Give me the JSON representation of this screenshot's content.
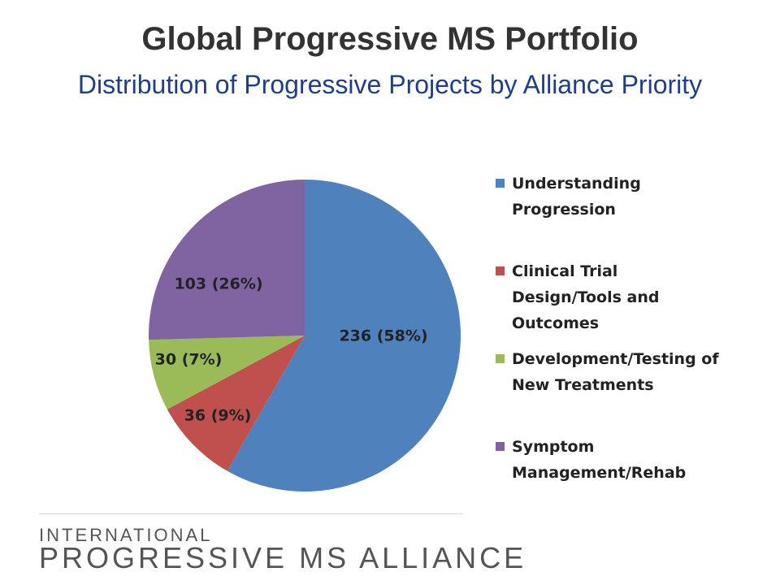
{
  "chart_data": {
    "type": "pie",
    "title": "Global Progressive MS Portfolio",
    "subtitle": "Distribution of Progressive Projects by Alliance Priority",
    "legend_position": "right",
    "slices": [
      {
        "name": "Understanding Progression",
        "value": 236,
        "percent": 58,
        "label": "236 (58%)",
        "color": "#4f81bd"
      },
      {
        "name": "Clinical Trial Design/Tools and Outcomes",
        "value": 36,
        "percent": 9,
        "label": "36 (9%)",
        "color": "#c0504d"
      },
      {
        "name": "Development/Testing of New Treatments",
        "value": 30,
        "percent": 7,
        "label": "30 (7%)",
        "color": "#9bbb59"
      },
      {
        "name": "Symptom Management/Rehab",
        "value": 103,
        "percent": 26,
        "label": "103 (26%)",
        "color": "#8064a2"
      }
    ]
  },
  "legend": {
    "items": [
      {
        "line1": "Understanding",
        "line2": "Progression",
        "line3": ""
      },
      {
        "line1": "Clinical Trial",
        "line2": "Design/Tools and",
        "line3": "Outcomes"
      },
      {
        "line1": "Development/Testing of",
        "line2": "New Treatments",
        "line3": ""
      },
      {
        "line1": "Symptom",
        "line2": "Management/Rehab",
        "line3": ""
      }
    ]
  },
  "footer": {
    "org_line1": "INTERNATIONAL",
    "org_line2": "PROGRESSIVE MS ALLIANCE"
  }
}
